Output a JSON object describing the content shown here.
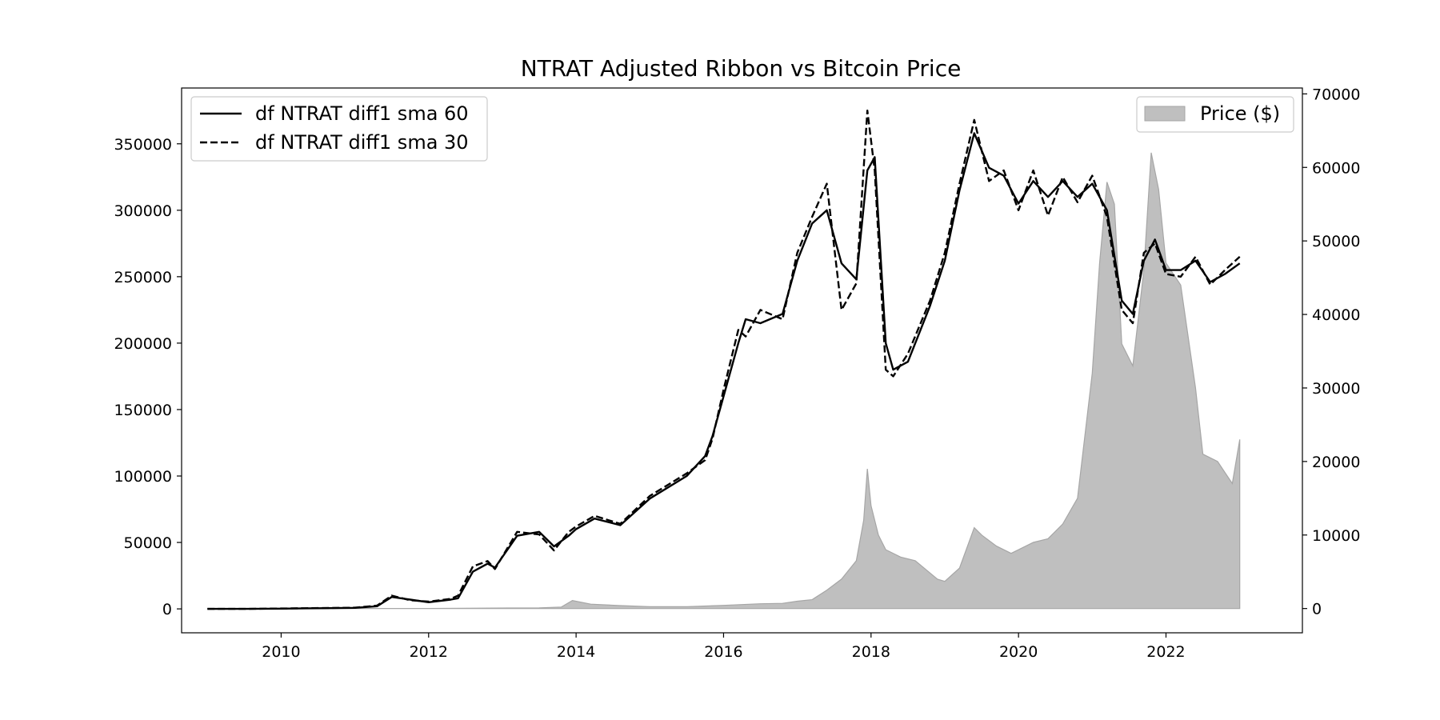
{
  "chart_data": {
    "type": "line",
    "title": "NTRAT Adjusted Ribbon vs Bitcoin Price",
    "xlabel": "",
    "ylabel": "",
    "y2label": "",
    "xlim": [
      2008.65,
      2023.85
    ],
    "ylim": [
      -18000,
      392000
    ],
    "y2lim": [
      -3300,
      70800
    ],
    "grid": false,
    "x_ticks": [
      2010,
      2012,
      2014,
      2016,
      2018,
      2020,
      2022
    ],
    "y_ticks": [
      0,
      50000,
      100000,
      150000,
      200000,
      250000,
      300000,
      350000
    ],
    "y2_ticks": [
      0,
      10000,
      20000,
      30000,
      40000,
      50000,
      60000,
      70000
    ],
    "legend_left": {
      "placement": "upper-left",
      "entries": [
        "df NTRAT diff1 sma 60",
        "df NTRAT diff1 sma 30"
      ]
    },
    "legend_right": {
      "placement": "upper-right",
      "entries": [
        "Price ($)"
      ]
    },
    "series": [
      {
        "name": "df NTRAT diff1 sma 60",
        "axis": "left",
        "style": "solid",
        "color": "#000000",
        "x": [
          2009.0,
          2009.5,
          2010.0,
          2010.5,
          2011.0,
          2011.3,
          2011.5,
          2011.75,
          2012.0,
          2012.3,
          2012.4,
          2012.6,
          2012.8,
          2012.9,
          2013.2,
          2013.5,
          2013.7,
          2013.9,
          2014.0,
          2014.25,
          2014.6,
          2015.0,
          2015.5,
          2015.75,
          2015.85,
          2016.0,
          2016.2,
          2016.3,
          2016.5,
          2016.8,
          2017.0,
          2017.2,
          2017.4,
          2017.6,
          2017.8,
          2017.95,
          2018.05,
          2018.2,
          2018.3,
          2018.5,
          2018.8,
          2019.0,
          2019.2,
          2019.4,
          2019.6,
          2019.8,
          2020.0,
          2020.2,
          2020.4,
          2020.6,
          2020.8,
          2021.0,
          2021.2,
          2021.4,
          2021.55,
          2021.7,
          2021.85,
          2022.0,
          2022.2,
          2022.4,
          2022.6,
          2022.8,
          2023.0
        ],
        "y": [
          0,
          0,
          200,
          500,
          800,
          2000,
          9000,
          7000,
          5000,
          7000,
          8000,
          28000,
          34000,
          31000,
          55000,
          58000,
          47000,
          55000,
          60000,
          68000,
          63000,
          83000,
          100000,
          115000,
          130000,
          160000,
          200000,
          218000,
          215000,
          222000,
          262000,
          290000,
          300000,
          260000,
          248000,
          330000,
          340000,
          200000,
          180000,
          186000,
          228000,
          262000,
          315000,
          358000,
          332000,
          326000,
          305000,
          322000,
          310000,
          322000,
          310000,
          320000,
          300000,
          232000,
          222000,
          262000,
          278000,
          255000,
          255000,
          262000,
          246000,
          252000,
          260000
        ]
      },
      {
        "name": "df NTRAT diff1 sma 30",
        "axis": "left",
        "style": "dashed",
        "color": "#000000",
        "x": [
          2009.0,
          2009.5,
          2010.0,
          2010.5,
          2011.0,
          2011.3,
          2011.5,
          2011.75,
          2012.0,
          2012.3,
          2012.4,
          2012.6,
          2012.8,
          2012.9,
          2013.2,
          2013.5,
          2013.7,
          2013.9,
          2014.0,
          2014.25,
          2014.6,
          2015.0,
          2015.5,
          2015.75,
          2015.85,
          2016.0,
          2016.2,
          2016.3,
          2016.5,
          2016.8,
          2017.0,
          2017.2,
          2017.4,
          2017.6,
          2017.8,
          2017.95,
          2018.05,
          2018.2,
          2018.3,
          2018.5,
          2018.8,
          2019.0,
          2019.2,
          2019.4,
          2019.6,
          2019.8,
          2020.0,
          2020.2,
          2020.4,
          2020.6,
          2020.8,
          2021.0,
          2021.2,
          2021.4,
          2021.55,
          2021.7,
          2021.85,
          2022.0,
          2022.2,
          2022.4,
          2022.6,
          2022.8,
          2023.0
        ],
        "y": [
          0,
          0,
          300,
          600,
          900,
          2500,
          10000,
          6500,
          5500,
          7500,
          10000,
          32000,
          36000,
          30000,
          58000,
          56000,
          44000,
          58000,
          62000,
          70000,
          64000,
          85000,
          102000,
          112000,
          128000,
          165000,
          210000,
          205000,
          225000,
          218000,
          268000,
          295000,
          320000,
          225000,
          245000,
          375000,
          330000,
          180000,
          175000,
          192000,
          232000,
          268000,
          320000,
          368000,
          322000,
          330000,
          300000,
          330000,
          296000,
          325000,
          306000,
          326000,
          295000,
          225000,
          215000,
          268000,
          275000,
          252000,
          250000,
          265000,
          244000,
          255000,
          265000
        ]
      },
      {
        "name": "Price ($)",
        "axis": "right",
        "style": "area",
        "color": "#bfbfbf",
        "x": [
          2009.0,
          2012.0,
          2013.5,
          2013.8,
          2013.95,
          2014.2,
          2014.6,
          2015.0,
          2015.5,
          2016.0,
          2016.5,
          2016.8,
          2017.0,
          2017.2,
          2017.4,
          2017.6,
          2017.8,
          2017.9,
          2017.95,
          2018.0,
          2018.1,
          2018.2,
          2018.4,
          2018.6,
          2018.9,
          2019.0,
          2019.2,
          2019.4,
          2019.5,
          2019.7,
          2019.9,
          2020.2,
          2020.4,
          2020.6,
          2020.8,
          2021.0,
          2021.1,
          2021.2,
          2021.3,
          2021.4,
          2021.55,
          2021.7,
          2021.8,
          2021.9,
          2022.0,
          2022.2,
          2022.4,
          2022.5,
          2022.7,
          2022.9,
          2023.0
        ],
        "y": [
          0,
          10,
          100,
          200,
          1100,
          600,
          400,
          250,
          250,
          430,
          650,
          700,
          1000,
          1200,
          2500,
          4000,
          6500,
          12000,
          19000,
          14000,
          10000,
          8000,
          7000,
          6500,
          4000,
          3700,
          5500,
          11000,
          10000,
          8500,
          7500,
          9000,
          9500,
          11500,
          15000,
          32000,
          47000,
          58000,
          55000,
          36000,
          33000,
          46000,
          62000,
          57000,
          47000,
          44000,
          30000,
          21000,
          20000,
          17000,
          23000
        ]
      }
    ]
  }
}
